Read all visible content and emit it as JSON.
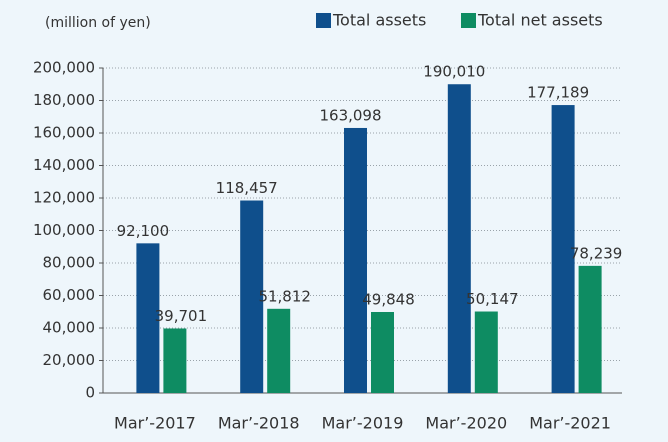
{
  "chart_data": {
    "type": "bar",
    "ylabel": "(million of yen)",
    "categories": [
      "Mar’-2017",
      "Mar’-2018",
      "Mar’-2019",
      "Mar’-2020",
      "Mar’-2021"
    ],
    "series": [
      {
        "name": "Total assets",
        "color": "#0f4f8c",
        "values": [
          92100,
          118457,
          163098,
          190010,
          177189
        ],
        "value_labels": [
          "92,100",
          "118,457",
          "163,098",
          "190,010",
          "177,189"
        ]
      },
      {
        "name": "Total net assets",
        "color": "#0e8c62",
        "values": [
          39701,
          51812,
          49848,
          50147,
          78239
        ],
        "value_labels": [
          "39,701",
          "51,812",
          "49,848",
          "50,147",
          "78,239"
        ]
      }
    ],
    "ylim": [
      0,
      200000
    ],
    "yticks": [
      0,
      {
        "value": 20000,
        "label": "20,000"
      },
      {
        "value": 40000,
        "label": "40,000"
      },
      {
        "value": 60000,
        "label": "60,000"
      },
      {
        "value": 80000,
        "label": "80,000"
      },
      {
        "value": 100000,
        "label": "100,000"
      },
      {
        "value": 120000,
        "label": "120,000"
      },
      {
        "value": 140000,
        "label": "140,000"
      },
      {
        "value": 160000,
        "label": "160,000"
      },
      {
        "value": 180000,
        "label": "180,000"
      },
      {
        "value": 200000,
        "label": "200,000"
      }
    ],
    "grid": true
  }
}
